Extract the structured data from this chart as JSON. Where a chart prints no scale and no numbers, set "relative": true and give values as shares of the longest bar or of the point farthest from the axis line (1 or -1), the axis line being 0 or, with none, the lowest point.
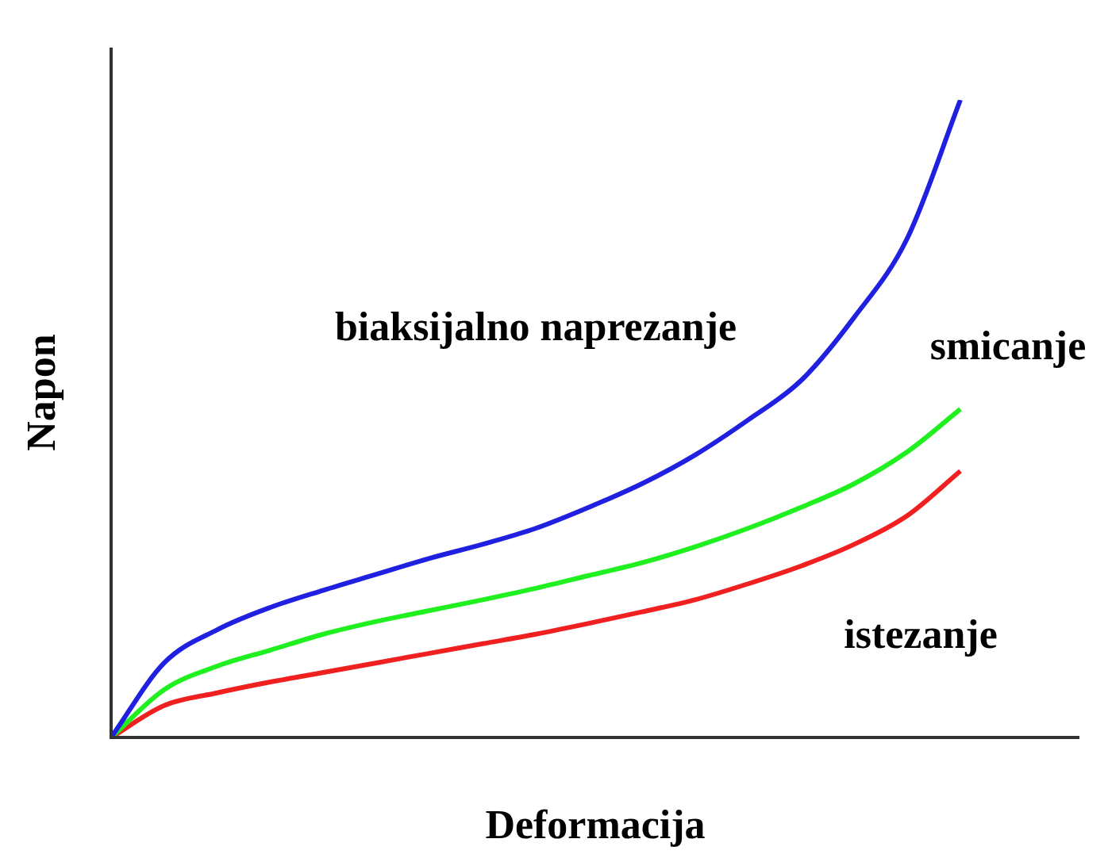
{
  "chart_data": {
    "type": "line",
    "relative": true,
    "xlabel": "Deformacija",
    "ylabel": "Napon",
    "legend": false,
    "marker": "none",
    "categories": [
      null,
      null,
      null,
      null,
      null,
      null,
      null,
      null,
      null,
      null,
      null,
      null,
      null,
      null,
      null,
      null,
      null
    ],
    "series": [
      {
        "name": "biaksijalno naprezanje",
        "color": "#2020e0",
        "values": [
          0,
          0.117,
          0.169,
          0.204,
          0.231,
          0.256,
          0.281,
          0.303,
          0.328,
          0.361,
          0.398,
          0.443,
          0.498,
          0.56,
          0.659,
          0.783,
          1
        ]
      },
      {
        "name": "smicanje",
        "color": "#20f020",
        "values": [
          0,
          0.075,
          0.112,
          0.137,
          0.162,
          0.182,
          0.199,
          0.216,
          0.234,
          0.254,
          0.274,
          0.299,
          0.328,
          0.361,
          0.398,
          0.448,
          0.515
        ]
      },
      {
        "name": "istezanje",
        "color": "#f02020",
        "values": [
          0,
          0.05,
          0.07,
          0.087,
          0.102,
          0.117,
          0.132,
          0.147,
          0.162,
          0.179,
          0.197,
          0.216,
          0.241,
          0.269,
          0.303,
          0.348,
          0.418
        ]
      }
    ]
  }
}
